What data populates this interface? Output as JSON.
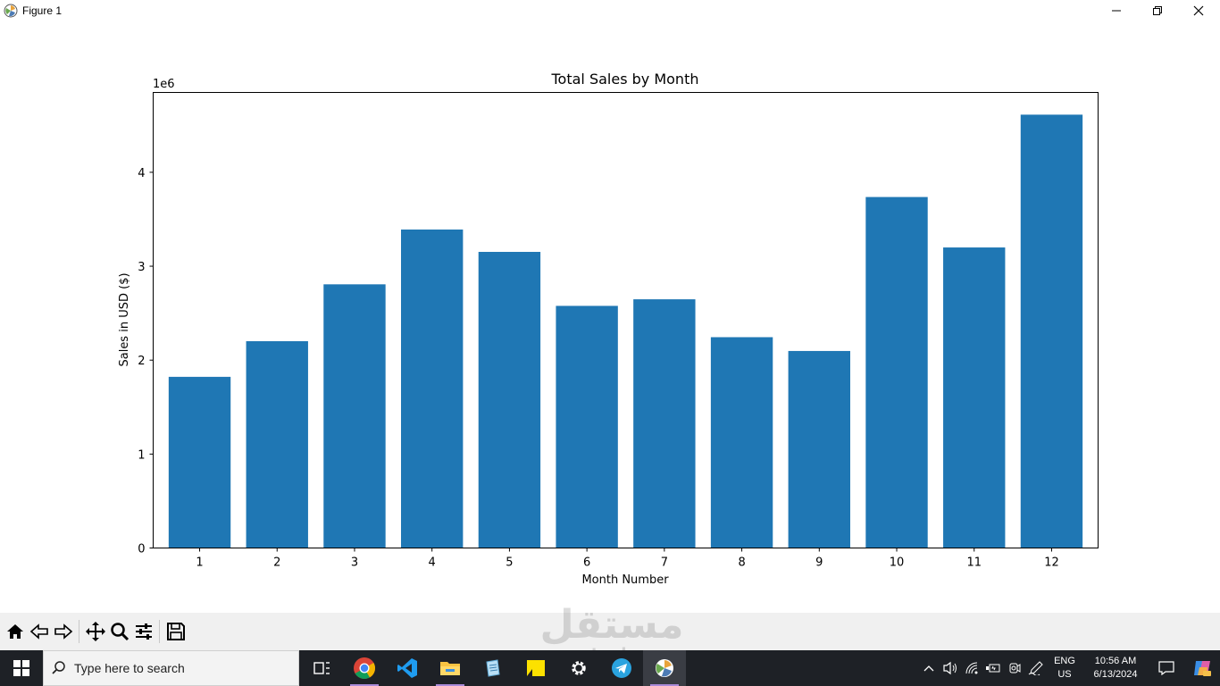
{
  "window": {
    "title": "Figure 1"
  },
  "chart_data": {
    "type": "bar",
    "title": "Total Sales by Month",
    "xlabel": "Month Number",
    "ylabel": "Sales in USD ($)",
    "offset_label": "1e6",
    "categories": [
      "1",
      "2",
      "3",
      "4",
      "5",
      "6",
      "7",
      "8",
      "9",
      "10",
      "11",
      "12"
    ],
    "values": [
      1822257,
      2202078,
      2807100,
      3390670,
      3152607,
      2577802,
      2647776,
      2244468,
      2097560,
      3736727,
      3199603,
      4613443
    ],
    "ylim": [
      0,
      4850000
    ],
    "yticks": [
      0,
      1000000,
      2000000,
      3000000,
      4000000
    ],
    "ytick_labels": [
      "0",
      "1",
      "2",
      "3",
      "4"
    ],
    "bar_color": "#1f77b4",
    "grid": false,
    "legend": "none"
  },
  "toolbar": {
    "icons": [
      "home-icon",
      "back-icon",
      "forward-icon",
      "pan-icon",
      "zoom-icon",
      "configure-subplots-icon",
      "save-icon"
    ]
  },
  "taskbar": {
    "search_placeholder": "Type here to search",
    "apps": [
      "task-view-icon",
      "chrome-icon",
      "vscode-icon",
      "file-explorer-icon",
      "notepad-icon",
      "sticky-notes-icon",
      "settings-icon",
      "telegram-icon",
      "matplotlib-icon"
    ],
    "language_line1": "ENG",
    "language_line2": "US",
    "time": "10:56 AM",
    "date": "6/13/2024"
  },
  "watermark": {
    "arabic": "مستقل",
    "latin": "mostaql.com"
  }
}
